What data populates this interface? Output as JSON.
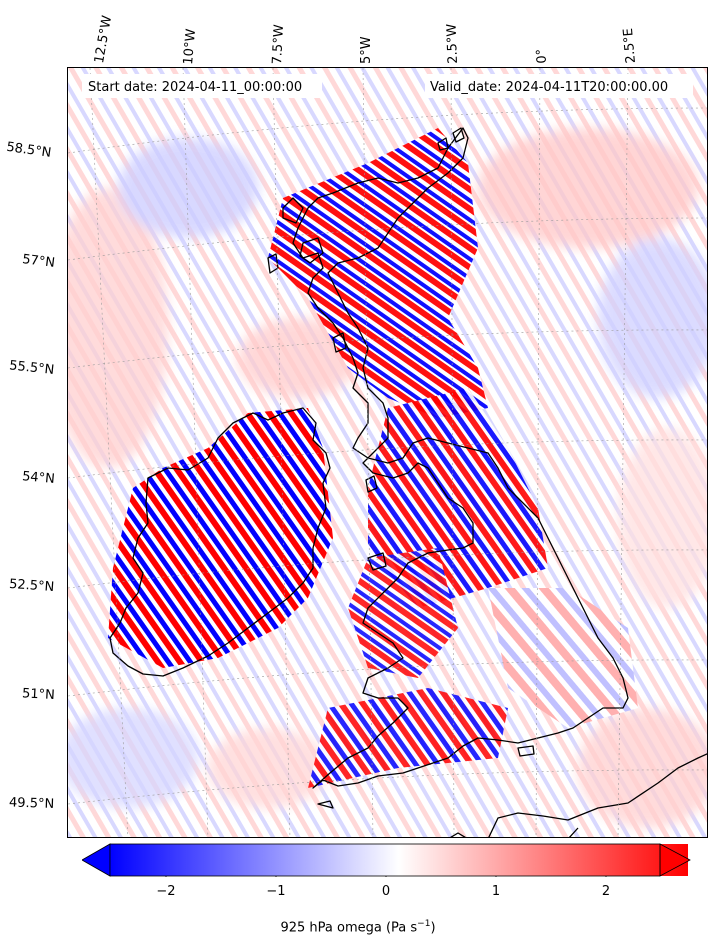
{
  "header": {
    "start_date": "Start date: 2024-04-11_00:00:00",
    "valid_date": "Valid_date: 2024-04-11T20:00:00.00"
  },
  "longitude_labels": [
    "12.5°W",
    "10°W",
    "7.5°W",
    "5°W",
    "2.5°W",
    "0°",
    "2.5°E"
  ],
  "latitude_labels": [
    "58.5°N",
    "57°N",
    "55.5°N",
    "54°N",
    "52.5°N",
    "51°N",
    "49.5°N"
  ],
  "colorbar": {
    "ticks": [
      "−2",
      "−1",
      "0",
      "1",
      "2"
    ],
    "range": [
      -2.6,
      2.6
    ],
    "label_text": "925 hPa omega (Pa s",
    "label_exponent": "−1",
    "label_close": ")",
    "colormap": "bwr",
    "extend": "both",
    "colors": {
      "negative": "#0000ff",
      "zero": "#ffffff",
      "positive": "#ff0000"
    }
  },
  "map": {
    "field": "925 hPa omega",
    "projection": "rotated pole / conic",
    "coastline_color": "#000000",
    "gridlines": "dotted grey"
  }
}
